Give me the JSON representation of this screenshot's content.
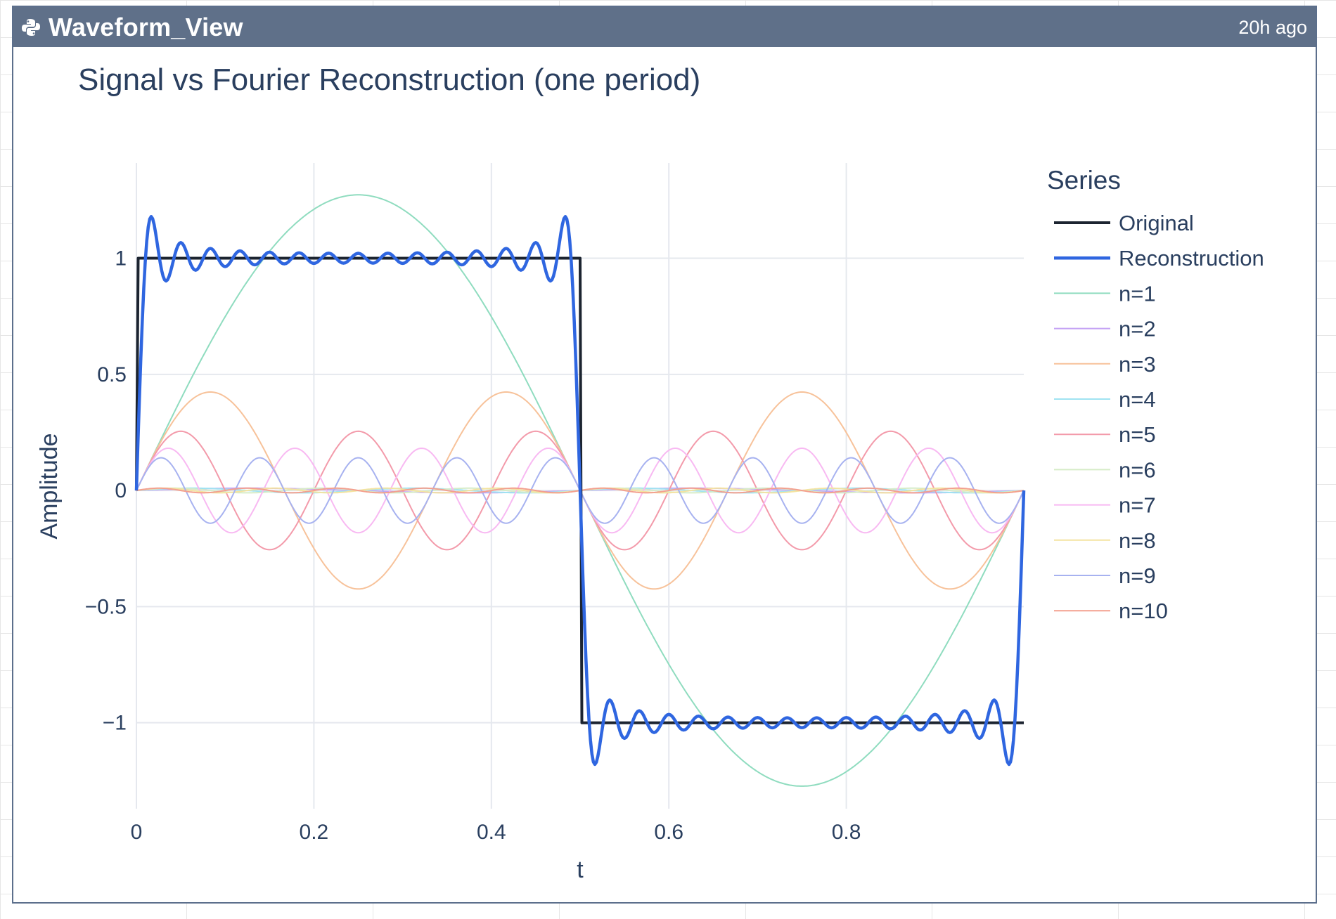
{
  "panel": {
    "title": "Waveform_View",
    "timestamp": "20h ago",
    "icon": "python-icon",
    "header_color": "#5f7089"
  },
  "chart_data": {
    "type": "line",
    "title": "Signal vs Fourier Reconstruction (one period)",
    "xlabel": "t",
    "ylabel": "Amplitude",
    "xlim": [
      0,
      1
    ],
    "ylim": [
      -1.37,
      1.41
    ],
    "x_ticks": [
      0,
      0.2,
      0.4,
      0.6,
      0.8
    ],
    "x_tick_labels": [
      "0",
      "0.2",
      "0.4",
      "0.6",
      "0.8"
    ],
    "y_ticks": [
      1,
      0.5,
      0,
      -0.5,
      -1
    ],
    "y_tick_labels": [
      "1",
      "0.5",
      "0",
      "−0.5",
      "−1"
    ],
    "grid": true,
    "legend_title": "Series",
    "legend_position": "right",
    "series": [
      {
        "name": "Original",
        "color": "#1c2430",
        "kind": "square"
      },
      {
        "name": "Reconstruction",
        "color": "#2f66e0",
        "kind": "reconstruction",
        "harmonics": 30
      },
      {
        "name": "n=1",
        "color": "#8fdcbf",
        "kind": "harmonic",
        "n": 1,
        "amplitude": 1.273
      },
      {
        "name": "n=2",
        "color": "#c5a3f5",
        "kind": "harmonic",
        "n": 2,
        "amplitude": 0.01
      },
      {
        "name": "n=3",
        "color": "#f7c29a",
        "kind": "harmonic",
        "n": 3,
        "amplitude": 0.424
      },
      {
        "name": "n=4",
        "color": "#9fe3f2",
        "kind": "harmonic",
        "n": 4,
        "amplitude": 0.01
      },
      {
        "name": "n=5",
        "color": "#f39aaa",
        "kind": "harmonic",
        "n": 5,
        "amplitude": 0.255
      },
      {
        "name": "n=6",
        "color": "#d6ecc8",
        "kind": "harmonic",
        "n": 6,
        "amplitude": 0.01
      },
      {
        "name": "n=7",
        "color": "#f8b9f2",
        "kind": "harmonic",
        "n": 7,
        "amplitude": 0.182
      },
      {
        "name": "n=8",
        "color": "#f4e3a0",
        "kind": "harmonic",
        "n": 8,
        "amplitude": 0.01
      },
      {
        "name": "n=9",
        "color": "#a7b2f0",
        "kind": "harmonic",
        "n": 9,
        "amplitude": 0.141
      },
      {
        "name": "n=10",
        "color": "#f3a08f",
        "kind": "harmonic",
        "n": 10,
        "amplitude": 0.01
      }
    ]
  }
}
